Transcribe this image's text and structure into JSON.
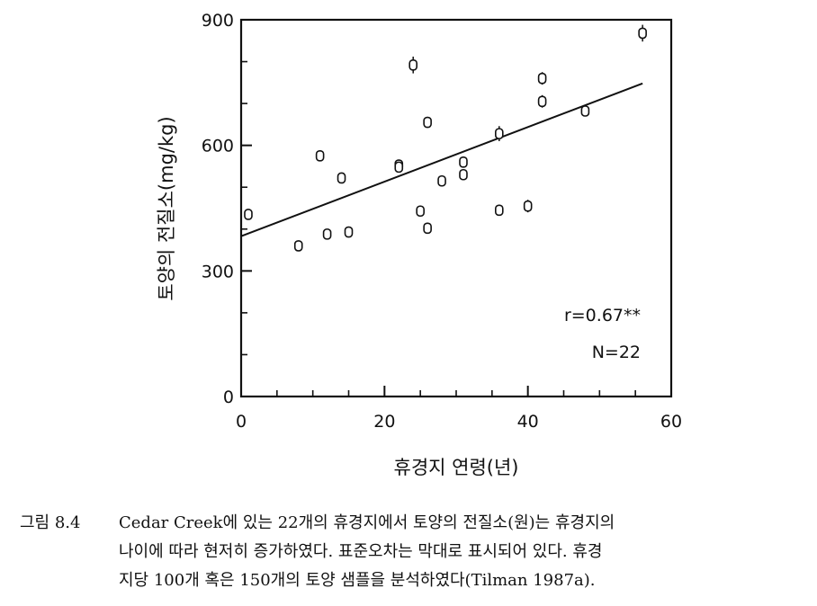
{
  "chart_data": {
    "type": "scatter",
    "xlabel": "휴경지 연령(년)",
    "ylabel": "토양의 전질소(mg/kg)",
    "xlim": [
      0,
      60
    ],
    "ylim": [
      0,
      900
    ],
    "x_ticks": [
      0,
      20,
      40,
      60
    ],
    "y_ticks": [
      0,
      300,
      600,
      900
    ],
    "points": [
      {
        "x": 1,
        "y": 435
      },
      {
        "x": 8,
        "y": 360
      },
      {
        "x": 11,
        "y": 575
      },
      {
        "x": 12,
        "y": 388
      },
      {
        "x": 14,
        "y": 522
      },
      {
        "x": 15,
        "y": 393
      },
      {
        "x": 22,
        "y": 553
      },
      {
        "x": 22,
        "y": 548
      },
      {
        "x": 24,
        "y": 792
      },
      {
        "x": 25,
        "y": 443
      },
      {
        "x": 26,
        "y": 655
      },
      {
        "x": 26,
        "y": 402
      },
      {
        "x": 28,
        "y": 515
      },
      {
        "x": 31,
        "y": 560
      },
      {
        "x": 31,
        "y": 530
      },
      {
        "x": 36,
        "y": 628
      },
      {
        "x": 36,
        "y": 445
      },
      {
        "x": 40,
        "y": 455
      },
      {
        "x": 42,
        "y": 760
      },
      {
        "x": 42,
        "y": 705
      },
      {
        "x": 48,
        "y": 682
      },
      {
        "x": 56,
        "y": 868
      }
    ],
    "error_half": [
      8,
      8,
      8,
      8,
      8,
      8,
      8,
      8,
      20,
      8,
      8,
      8,
      8,
      8,
      8,
      18,
      8,
      15,
      15,
      15,
      12,
      20
    ],
    "trendline": {
      "x": [
        0,
        56
      ],
      "y": [
        383,
        748
      ]
    },
    "stats": {
      "r": "r=0.67**",
      "n": "N=22"
    }
  },
  "caption": {
    "label": "그림 8.4",
    "lines": [
      "Cedar Creek에 있는 22개의 휴경지에서 토양의 전질소(원)는 휴경지의",
      "나이에 따라 현저히 증가하였다. 표준오차는 막대로 표시되어 있다. 휴경",
      "지당 100개 혹은 150개의 토양 샘플을 분석하였다(Tilman 1987a)."
    ]
  }
}
